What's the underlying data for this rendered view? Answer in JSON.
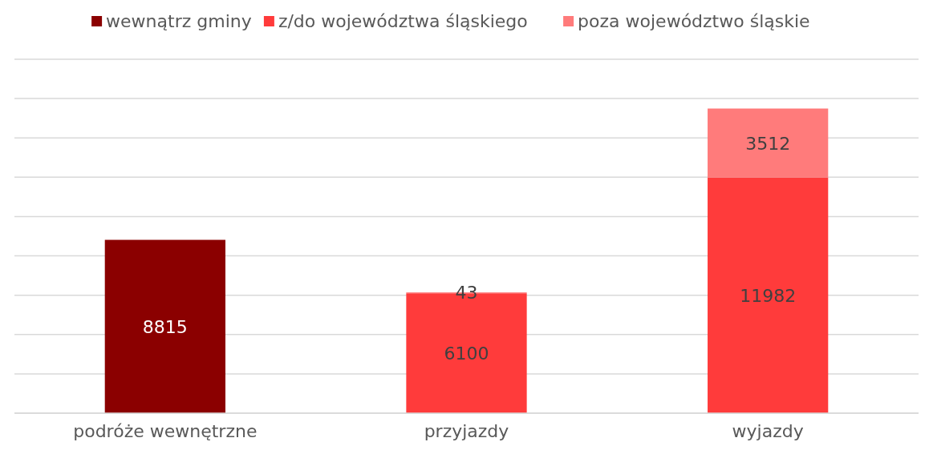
{
  "chart_data": {
    "type": "bar",
    "stacked": true,
    "categories": [
      "podróże wewnętrzne",
      "przyjazdy",
      "wyjazdy"
    ],
    "series": [
      {
        "name": "wewnątrz gminy",
        "color": "#8b0000",
        "values": [
          8815,
          null,
          null
        ]
      },
      {
        "name": "z/do województwa śląskiego",
        "color": "#ff3b3b",
        "values": [
          null,
          6100,
          11982
        ]
      },
      {
        "name": "poza województwo śląskie",
        "color": "#ff7b7b",
        "values": [
          null,
          43,
          3512
        ]
      }
    ],
    "ylim": [
      0,
      18000
    ],
    "yticks": [
      {
        "value": 0,
        "label": null
      },
      {
        "value": 2000,
        "label": null
      },
      {
        "value": 4000,
        "label": null
      },
      {
        "value": 6000,
        "label": null
      },
      {
        "value": 8000,
        "label": null
      },
      {
        "value": 10000,
        "label": null
      },
      {
        "value": 12000,
        "label": null
      },
      {
        "value": 14000,
        "label": null
      },
      {
        "value": 16000,
        "label": null
      },
      {
        "value": 18000,
        "label": null
      }
    ],
    "tick_labels": "x",
    "grid": "y",
    "legend": "top",
    "data_labels": true
  }
}
